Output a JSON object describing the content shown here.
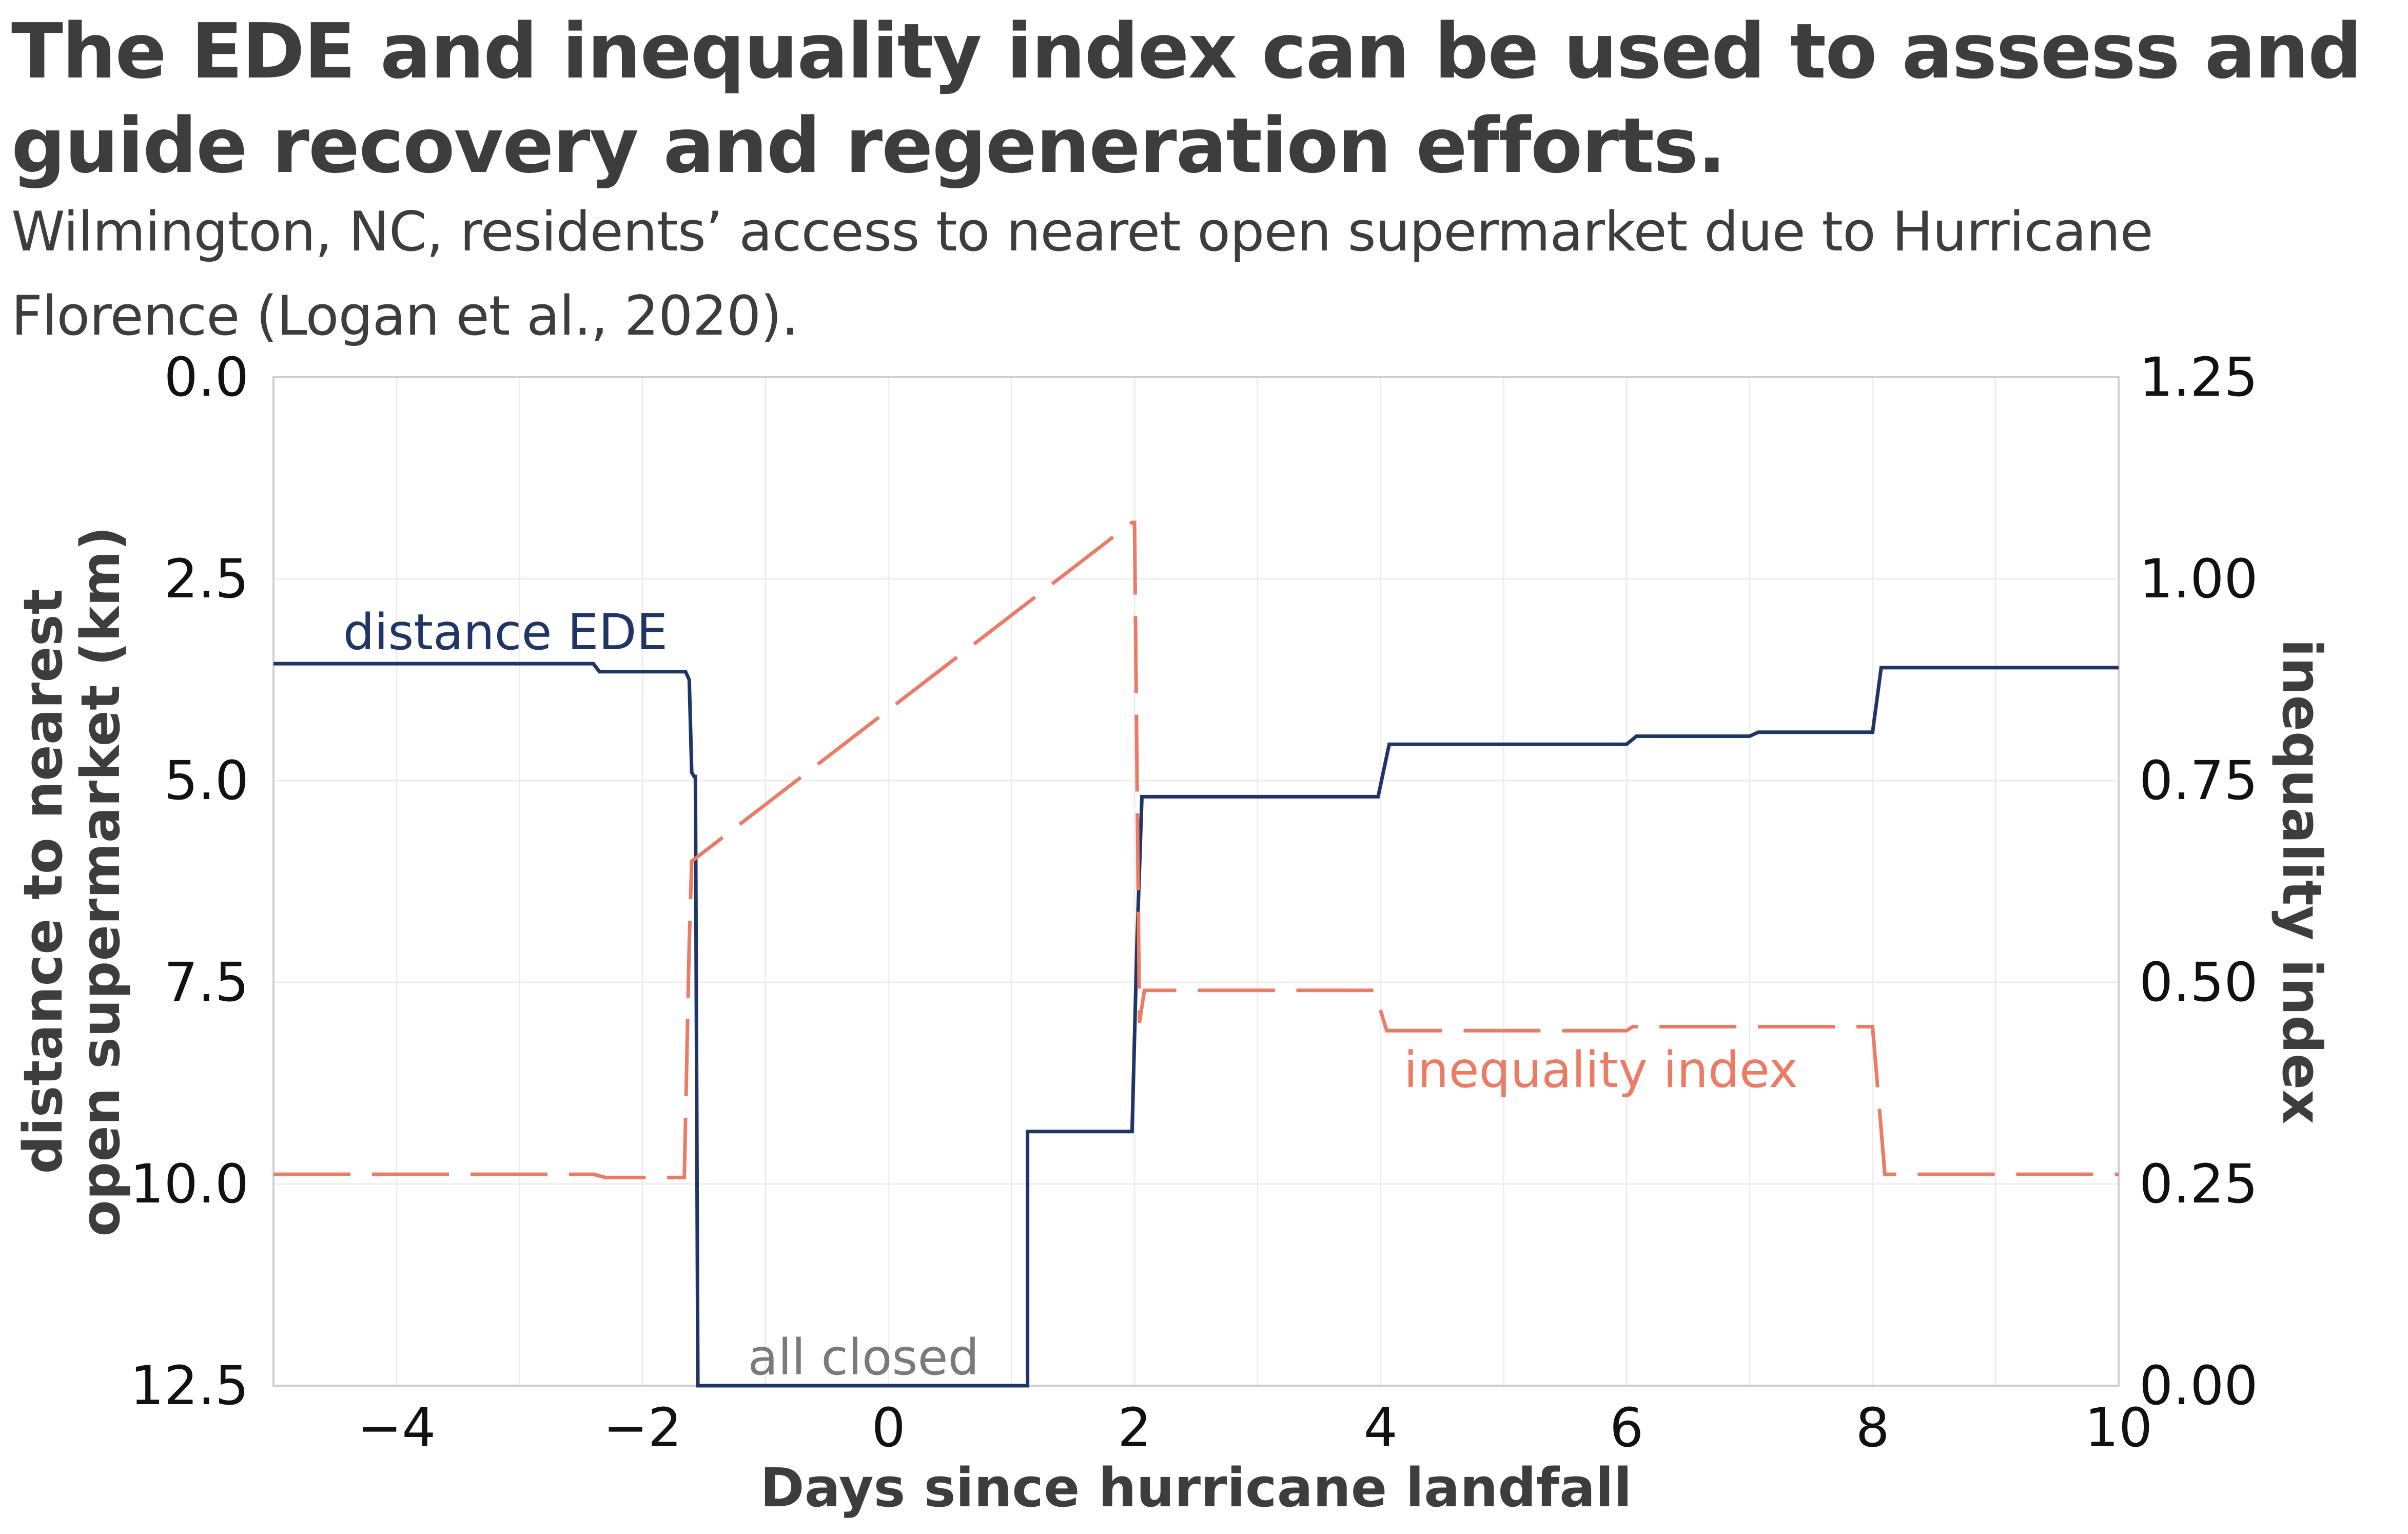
{
  "title": "The EDE and inequality index can be used to assess and guide recovery and regeneration efforts.",
  "subtitle": "Wilmington, NC, residents’ access to nearet open supermarket due to Hurricane Florence (Logan et al., 2020).",
  "chart_data": {
    "type": "line",
    "xlabel": "Days since hurricane landfall",
    "ylabel": "distance to nearest open supermarket (km)",
    "y2label": "inequality index",
    "xlim": [
      -5,
      10
    ],
    "ylim": [
      0,
      12.5
    ],
    "y_inverted": true,
    "y2lim": [
      0,
      1.25
    ],
    "x_ticks": [
      "−4",
      "−2",
      "0",
      "2",
      "4",
      "6",
      "8",
      "10"
    ],
    "x_tick_values": [
      -4,
      -2,
      0,
      2,
      4,
      6,
      8,
      10
    ],
    "y_ticks": [
      "0.0",
      "2.5",
      "5.0",
      "7.5",
      "10.0",
      "12.5"
    ],
    "y_tick_values": [
      0,
      2.5,
      5,
      7.5,
      10,
      12.5
    ],
    "y2_ticks": [
      "1.25",
      "1.00",
      "0.75",
      "0.50",
      "0.25",
      "0.00"
    ],
    "y2_tick_values": [
      1.25,
      1.0,
      0.75,
      0.5,
      0.25,
      0.0
    ],
    "grid": true,
    "colors": {
      "ede": "#1f3565",
      "inequality": "#ec7b66",
      "closed": "#7a7a7a"
    },
    "series": [
      {
        "name": "distance EDE",
        "axis": "left",
        "style": "solid",
        "x": [
          -5,
          -2.4,
          -2.35,
          -1.65,
          -1.62,
          -1.6,
          -1.58,
          -1.57,
          -1.55,
          -1.55,
          1.13,
          1.13,
          1.98,
          2.02,
          2.06,
          3.98,
          4.07,
          6.0,
          6.08,
          7.0,
          7.07,
          8.0,
          8.07,
          10
        ],
        "y": [
          3.55,
          3.55,
          3.65,
          3.65,
          3.75,
          4.9,
          4.95,
          4.95,
          12.5,
          12.5,
          12.5,
          9.35,
          9.35,
          7.0,
          5.2,
          5.2,
          4.55,
          4.55,
          4.45,
          4.45,
          4.4,
          4.4,
          3.6,
          3.6
        ]
      },
      {
        "name": "inequality index",
        "axis": "right",
        "style": "dashed",
        "x": [
          -5,
          -2.4,
          -2.3,
          -1.66,
          -1.62,
          -1.6,
          1.98,
          2.0,
          2.04,
          2.08,
          3.95,
          4.05,
          6.0,
          6.05,
          8.0,
          8.1,
          10
        ],
        "y": [
          0.262,
          0.262,
          0.258,
          0.258,
          0.55,
          0.65,
          1.07,
          1.07,
          0.45,
          0.49,
          0.49,
          0.44,
          0.44,
          0.445,
          0.445,
          0.262,
          0.262
        ]
      }
    ],
    "annotations": [
      "distance EDE",
      "inequality index",
      "all closed"
    ]
  }
}
